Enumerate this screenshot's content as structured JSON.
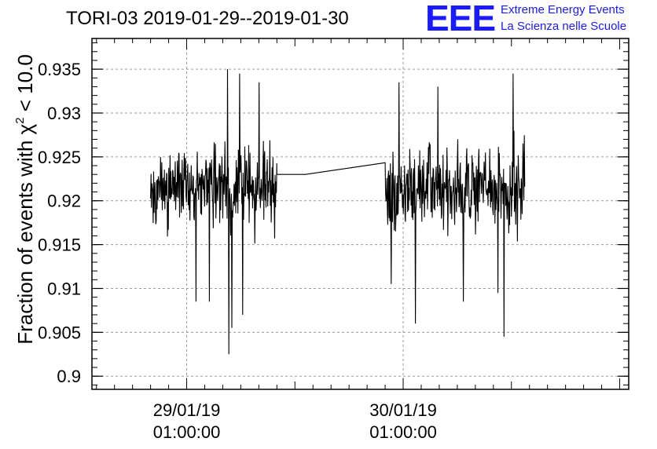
{
  "chart_data": {
    "type": "line",
    "title": "TORI-03 2019-01-29--2019-01-30",
    "ylabel": {
      "prefix": "Fraction of events with ",
      "symbol": "χ",
      "superscript": "2",
      "suffix": " < 10.0"
    },
    "xlabel": "",
    "ylim": [
      0.8985,
      0.9385
    ],
    "yticks": [
      0.9,
      0.905,
      0.91,
      0.915,
      0.92,
      0.925,
      0.93,
      0.935
    ],
    "ytick_labels": [
      "0.9",
      "0.905",
      "0.91",
      "0.915",
      "0.92",
      "0.925",
      "0.93",
      "0.935"
    ],
    "xlim": [
      "2019-01-28 14:30",
      "2019-01-31 02:00"
    ],
    "xticks": [
      {
        "value": "2019-01-29 01:00",
        "line1": "29/01/19",
        "line2": "01:00:00"
      },
      {
        "value": "2019-01-30 01:00",
        "line1": "30/01/19",
        "line2": "01:00:00"
      }
    ],
    "grid": true,
    "line_color": "#000000",
    "series": [
      {
        "segments": [
          {
            "start": "2019-01-28 21:00",
            "end": "2019-01-29 11:00",
            "mean": 0.9215,
            "spread": 0.0032,
            "extremes": [
              {
                "time": "2019-01-29 05:40",
                "value": 0.9025
              },
              {
                "time": "2019-01-29 06:00",
                "value": 0.9055
              },
              {
                "time": "2019-01-29 05:30",
                "value": 0.935
              },
              {
                "time": "2019-01-29 06:50",
                "value": 0.9345
              },
              {
                "time": "2019-01-29 02:00",
                "value": 0.9085
              },
              {
                "time": "2019-01-29 03:30",
                "value": 0.9085
              },
              {
                "time": "2019-01-29 07:10",
                "value": 0.907
              },
              {
                "time": "2019-01-29 09:00",
                "value": 0.9335
              }
            ]
          },
          {
            "start": "2019-01-29 11:00",
            "end": "2019-01-29 14:10",
            "mean": 0.923,
            "spread": 0.0
          },
          {
            "start": "2019-01-29 23:00",
            "end": "2019-01-30 14:30",
            "mean": 0.9213,
            "spread": 0.0032,
            "extremes": [
              {
                "time": "2019-01-30 02:20",
                "value": 0.906
              },
              {
                "time": "2019-01-30 12:10",
                "value": 0.9045
              },
              {
                "time": "2019-01-30 13:10",
                "value": 0.9345
              },
              {
                "time": "2019-01-30 00:30",
                "value": 0.9335
              },
              {
                "time": "2019-01-30 04:50",
                "value": 0.933
              },
              {
                "time": "2019-01-29 23:40",
                "value": 0.9105
              },
              {
                "time": "2019-01-30 07:40",
                "value": 0.9085
              },
              {
                "time": "2019-01-30 11:30",
                "value": 0.9095
              }
            ]
          }
        ]
      }
    ]
  },
  "logo": {
    "mark": "EEE",
    "line1": "Extreme Energy Events",
    "line2": "La Scienza nelle Scuole",
    "color": "#1a1aff"
  }
}
